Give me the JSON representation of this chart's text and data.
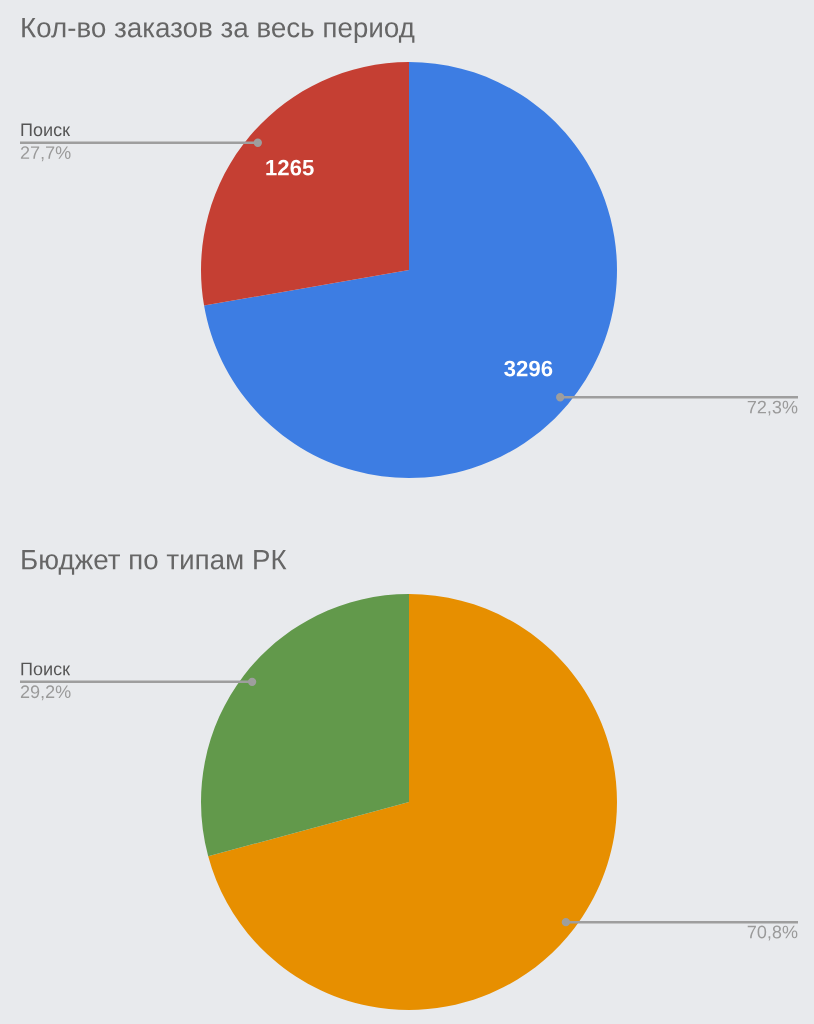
{
  "chart_data": [
    {
      "type": "pie",
      "title": "Кол-во заказов за весь период",
      "categories": [
        null,
        "Поиск"
      ],
      "values": [
        3296,
        1265
      ],
      "colors": [
        "#3d7de3",
        "#c53f33"
      ],
      "data_labels": true,
      "annotations": [
        "72,3%",
        "27,7%"
      ]
    },
    {
      "type": "pie",
      "title": "Бюджет по типам РК",
      "categories": [
        null,
        "Поиск"
      ],
      "values": [
        70.8,
        29.2
      ],
      "colors": [
        "#e78f00",
        "#62994b"
      ],
      "annotations": [
        "70,8%",
        "29,2%"
      ]
    }
  ]
}
